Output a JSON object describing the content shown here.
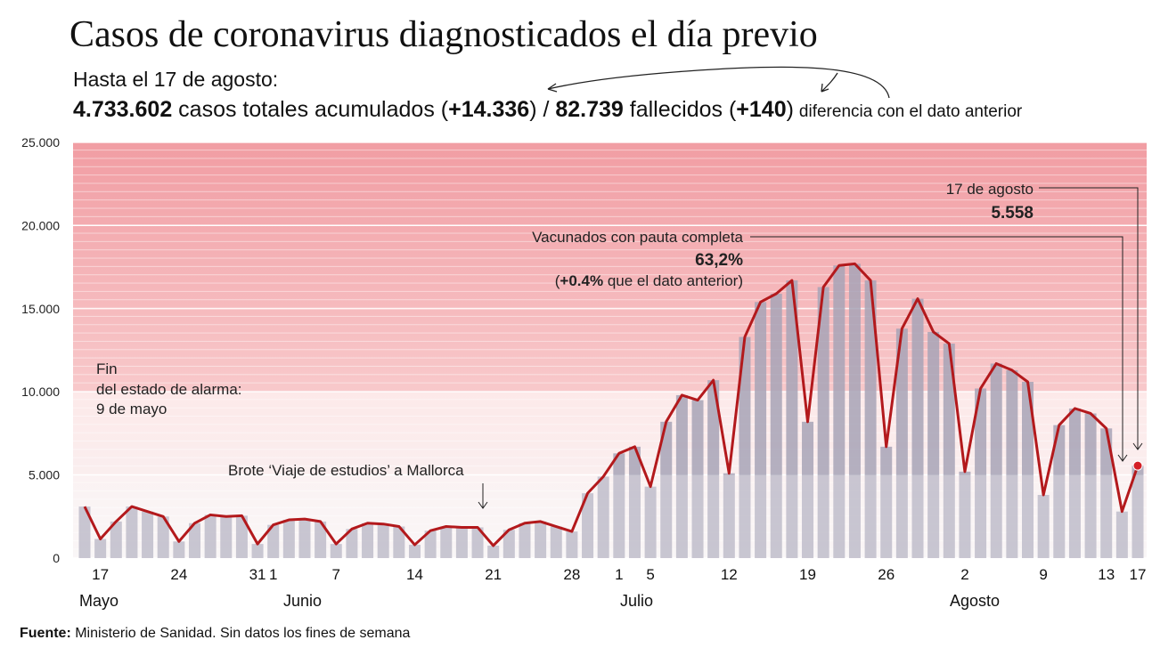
{
  "chart_data": {
    "type": "bar",
    "title": "Casos de coronavirus diagnosticados el día previo",
    "subtitle": "Hasta el 17 de agosto:",
    "summary": [
      "4.733.602",
      " casos totales acumulados (",
      "+14.336",
      ") / ",
      "82.739",
      " fallecidos (",
      "+140",
      ")",
      "diferencia con el dato anterior"
    ],
    "categories": [
      null,
      "17",
      null,
      null,
      null,
      null,
      "24",
      null,
      null,
      null,
      null,
      "31",
      "1",
      null,
      null,
      null,
      "7",
      null,
      null,
      null,
      null,
      "14",
      null,
      null,
      null,
      null,
      "21",
      null,
      null,
      null,
      null,
      "28",
      null,
      null,
      "1",
      null,
      "5",
      null,
      null,
      null,
      null,
      "12",
      null,
      null,
      null,
      null,
      "19",
      null,
      null,
      null,
      null,
      "26",
      null,
      null,
      null,
      null,
      "2",
      null,
      null,
      null,
      null,
      "9",
      null,
      null,
      null,
      "13",
      null,
      "17"
    ],
    "months": [
      "Mayo",
      "Junio",
      "Julio",
      "Agosto"
    ],
    "values": [
      3100,
      1150,
      2200,
      3100,
      2800,
      2500,
      1000,
      2100,
      2600,
      2500,
      2550,
      850,
      2000,
      2300,
      2350,
      2200,
      850,
      1750,
      2100,
      2050,
      1900,
      800,
      1650,
      1900,
      1850,
      1850,
      750,
      1700,
      2100,
      2200,
      1900,
      1600,
      3900,
      4900,
      6300,
      6700,
      4300,
      8200,
      9800,
      9500,
      10700,
      5100,
      13300,
      15400,
      15900,
      16700,
      8200,
      16300,
      17600,
      17700,
      16700,
      6700,
      13800,
      15600,
      13600,
      12900,
      5200,
      10200,
      11700,
      11300,
      10600,
      3800,
      8000,
      9000,
      8700,
      7800,
      2800,
      5558
    ],
    "color": "#a7a3b6",
    "line_color": "#b3191c",
    "ylim": [
      0,
      25000
    ],
    "yticks": [
      0,
      {
        "value": 5000,
        "label": "5.000"
      },
      {
        "value": 10000,
        "label": "10.000"
      },
      {
        "value": 15000,
        "label": "15.000"
      },
      {
        "value": 20000,
        "label": "20.000"
      },
      {
        "value": 25000,
        "label": "25.000"
      }
    ],
    "annotations": {
      "alarma": [
        "Fin",
        "del estado de alarma:",
        "9 de mayo"
      ],
      "brote": "Brote ‘Viaje de estudios’ a Mallorca",
      "vacunados": [
        "Vacunados con pauta completa",
        "63,2%",
        "(",
        "+0.4%",
        " que el dato anterior)"
      ],
      "ultimo": [
        "17 de agosto",
        "5.558"
      ]
    },
    "source": [
      "Fuente:",
      " Ministerio de Sanidad. Sin datos los fines de semana"
    ]
  }
}
